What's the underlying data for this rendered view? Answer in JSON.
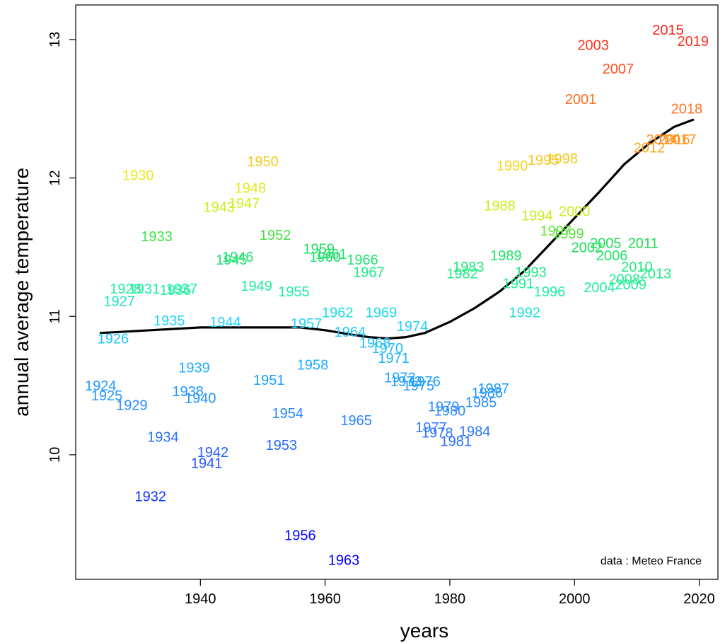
{
  "chart_data": {
    "type": "scatter",
    "xlabel": "years",
    "ylabel": "annual average temperature",
    "annotation": "data : Meteo France",
    "xlim": [
      1920,
      2023
    ],
    "ylim": [
      9.1,
      13.25
    ],
    "xticks": [
      1940,
      1960,
      1980,
      2000,
      2020
    ],
    "yticks": [
      10,
      11,
      12,
      13
    ],
    "marker": "year label",
    "color_scale": {
      "description": "points coloured by temperature: blue (cold) through cyan, green, yellow, orange to red (warm)",
      "stops": [
        {
          "t": 9.35,
          "color": "#0000ff"
        },
        {
          "t": 10.2,
          "color": "#2e7bff"
        },
        {
          "t": 10.55,
          "color": "#1ea2ff"
        },
        {
          "t": 10.95,
          "color": "#1ed2ff"
        },
        {
          "t": 11.2,
          "color": "#1ef0a0"
        },
        {
          "t": 11.55,
          "color": "#1edc50"
        },
        {
          "t": 11.7,
          "color": "#c0f01e"
        },
        {
          "t": 12.05,
          "color": "#f0e61e"
        },
        {
          "t": 12.3,
          "color": "#ff8c1e"
        },
        {
          "t": 12.6,
          "color": "#ff6a1e"
        },
        {
          "t": 13.1,
          "color": "#ff1e1e"
        }
      ]
    },
    "points": [
      {
        "x": 1924,
        "y": 10.5,
        "label": "1924"
      },
      {
        "x": 1925,
        "y": 10.43,
        "label": "1925"
      },
      {
        "x": 1926,
        "y": 10.84,
        "label": "1926"
      },
      {
        "x": 1927,
        "y": 11.11,
        "label": "1927"
      },
      {
        "x": 1928,
        "y": 11.2,
        "label": "1928"
      },
      {
        "x": 1929,
        "y": 10.36,
        "label": "1929"
      },
      {
        "x": 1930,
        "y": 12.02,
        "label": "1930"
      },
      {
        "x": 1931,
        "y": 11.2,
        "label": "1931"
      },
      {
        "x": 1932,
        "y": 9.7,
        "label": "1932"
      },
      {
        "x": 1933,
        "y": 11.58,
        "label": "1933"
      },
      {
        "x": 1934,
        "y": 10.13,
        "label": "1934"
      },
      {
        "x": 1935,
        "y": 10.97,
        "label": "1935"
      },
      {
        "x": 1936,
        "y": 11.19,
        "label": "1936"
      },
      {
        "x": 1937,
        "y": 11.2,
        "label": "1937"
      },
      {
        "x": 1938,
        "y": 10.46,
        "label": "1938"
      },
      {
        "x": 1939,
        "y": 10.63,
        "label": "1939"
      },
      {
        "x": 1940,
        "y": 10.41,
        "label": "1940"
      },
      {
        "x": 1941,
        "y": 9.94,
        "label": "1941"
      },
      {
        "x": 1942,
        "y": 10.02,
        "label": "1942"
      },
      {
        "x": 1943,
        "y": 11.79,
        "label": "1943"
      },
      {
        "x": 1944,
        "y": 10.96,
        "label": "1944"
      },
      {
        "x": 1945,
        "y": 11.41,
        "label": "1945"
      },
      {
        "x": 1946,
        "y": 11.43,
        "label": "1946"
      },
      {
        "x": 1947,
        "y": 11.82,
        "label": "1947"
      },
      {
        "x": 1948,
        "y": 11.93,
        "label": "1948"
      },
      {
        "x": 1949,
        "y": 11.22,
        "label": "1949"
      },
      {
        "x": 1950,
        "y": 12.12,
        "label": "1950"
      },
      {
        "x": 1951,
        "y": 10.54,
        "label": "1951"
      },
      {
        "x": 1952,
        "y": 11.59,
        "label": "1952"
      },
      {
        "x": 1953,
        "y": 10.07,
        "label": "1953"
      },
      {
        "x": 1954,
        "y": 10.3,
        "label": "1954"
      },
      {
        "x": 1955,
        "y": 11.18,
        "label": "1955"
      },
      {
        "x": 1956,
        "y": 9.42,
        "label": "1956"
      },
      {
        "x": 1957,
        "y": 10.95,
        "label": "1957"
      },
      {
        "x": 1958,
        "y": 10.65,
        "label": "1958"
      },
      {
        "x": 1959,
        "y": 11.49,
        "label": "1959"
      },
      {
        "x": 1960,
        "y": 11.43,
        "label": "1960"
      },
      {
        "x": 1961,
        "y": 11.45,
        "label": "1961"
      },
      {
        "x": 1962,
        "y": 11.03,
        "label": "1962"
      },
      {
        "x": 1963,
        "y": 9.24,
        "label": "1963"
      },
      {
        "x": 1964,
        "y": 10.89,
        "label": "1964"
      },
      {
        "x": 1965,
        "y": 10.25,
        "label": "1965"
      },
      {
        "x": 1966,
        "y": 11.41,
        "label": "1966"
      },
      {
        "x": 1967,
        "y": 11.32,
        "label": "1967"
      },
      {
        "x": 1968,
        "y": 10.81,
        "label": "1968"
      },
      {
        "x": 1969,
        "y": 11.03,
        "label": "1969"
      },
      {
        "x": 1970,
        "y": 10.77,
        "label": "1970"
      },
      {
        "x": 1971,
        "y": 10.7,
        "label": "1971"
      },
      {
        "x": 1972,
        "y": 10.56,
        "label": "1972"
      },
      {
        "x": 1973,
        "y": 10.53,
        "label": "1973"
      },
      {
        "x": 1974,
        "y": 10.93,
        "label": "1974"
      },
      {
        "x": 1975,
        "y": 10.5,
        "label": "1975"
      },
      {
        "x": 1976,
        "y": 10.53,
        "label": "1976"
      },
      {
        "x": 1977,
        "y": 10.2,
        "label": "1977"
      },
      {
        "x": 1978,
        "y": 10.16,
        "label": "1978"
      },
      {
        "x": 1979,
        "y": 10.35,
        "label": "1979"
      },
      {
        "x": 1980,
        "y": 10.32,
        "label": "1980"
      },
      {
        "x": 1981,
        "y": 10.1,
        "label": "1981"
      },
      {
        "x": 1982,
        "y": 11.31,
        "label": "1982"
      },
      {
        "x": 1983,
        "y": 11.36,
        "label": "1983"
      },
      {
        "x": 1984,
        "y": 10.17,
        "label": "1984"
      },
      {
        "x": 1985,
        "y": 10.38,
        "label": "1985"
      },
      {
        "x": 1986,
        "y": 10.45,
        "label": "1986"
      },
      {
        "x": 1987,
        "y": 10.48,
        "label": "1987"
      },
      {
        "x": 1988,
        "y": 11.8,
        "label": "1988"
      },
      {
        "x": 1989,
        "y": 11.44,
        "label": "1989"
      },
      {
        "x": 1990,
        "y": 12.09,
        "label": "1990"
      },
      {
        "x": 1991,
        "y": 11.24,
        "label": "1991"
      },
      {
        "x": 1992,
        "y": 11.03,
        "label": "1992"
      },
      {
        "x": 1993,
        "y": 11.32,
        "label": "1993"
      },
      {
        "x": 1994,
        "y": 11.73,
        "label": "1994"
      },
      {
        "x": 1995,
        "y": 12.13,
        "label": "1995"
      },
      {
        "x": 1996,
        "y": 11.18,
        "label": "1996"
      },
      {
        "x": 1997,
        "y": 11.62,
        "label": "1997"
      },
      {
        "x": 1998,
        "y": 12.14,
        "label": "1998"
      },
      {
        "x": 1999,
        "y": 11.6,
        "label": "1999"
      },
      {
        "x": 2000,
        "y": 11.76,
        "label": "2000"
      },
      {
        "x": 2001,
        "y": 12.57,
        "label": "2001"
      },
      {
        "x": 2002,
        "y": 11.5,
        "label": "2002"
      },
      {
        "x": 2003,
        "y": 12.96,
        "label": "2003"
      },
      {
        "x": 2004,
        "y": 11.21,
        "label": "2004"
      },
      {
        "x": 2005,
        "y": 11.53,
        "label": "2005"
      },
      {
        "x": 2006,
        "y": 11.44,
        "label": "2006"
      },
      {
        "x": 2007,
        "y": 12.79,
        "label": "2007"
      },
      {
        "x": 2008,
        "y": 11.27,
        "label": "2008"
      },
      {
        "x": 2009,
        "y": 11.23,
        "label": "2009"
      },
      {
        "x": 2010,
        "y": 11.36,
        "label": "2010"
      },
      {
        "x": 2011,
        "y": 11.53,
        "label": "2011"
      },
      {
        "x": 2012,
        "y": 12.22,
        "label": "2012"
      },
      {
        "x": 2013,
        "y": 11.31,
        "label": "2013"
      },
      {
        "x": 2014,
        "y": 12.28,
        "label": "2014"
      },
      {
        "x": 2015,
        "y": 13.07,
        "label": "2015"
      },
      {
        "x": 2016,
        "y": 12.28,
        "label": "2016"
      },
      {
        "x": 2017,
        "y": 12.28,
        "label": "2017"
      },
      {
        "x": 2018,
        "y": 12.5,
        "label": "2018"
      },
      {
        "x": 2019,
        "y": 12.99,
        "label": "2019"
      }
    ],
    "trend": {
      "name": "smoothed trend",
      "color": "#000000",
      "x": [
        1924,
        1928,
        1932,
        1936,
        1940,
        1944,
        1948,
        1952,
        1956,
        1960,
        1964,
        1967,
        1970,
        1973,
        1976,
        1980,
        1984,
        1988,
        1992,
        1996,
        2000,
        2004,
        2008,
        2012,
        2016,
        2019
      ],
      "y": [
        10.88,
        10.89,
        10.9,
        10.91,
        10.92,
        10.92,
        10.92,
        10.92,
        10.92,
        10.9,
        10.87,
        10.85,
        10.84,
        10.85,
        10.88,
        10.96,
        11.06,
        11.18,
        11.33,
        11.52,
        11.71,
        11.9,
        12.1,
        12.25,
        12.37,
        12.42
      ]
    }
  }
}
